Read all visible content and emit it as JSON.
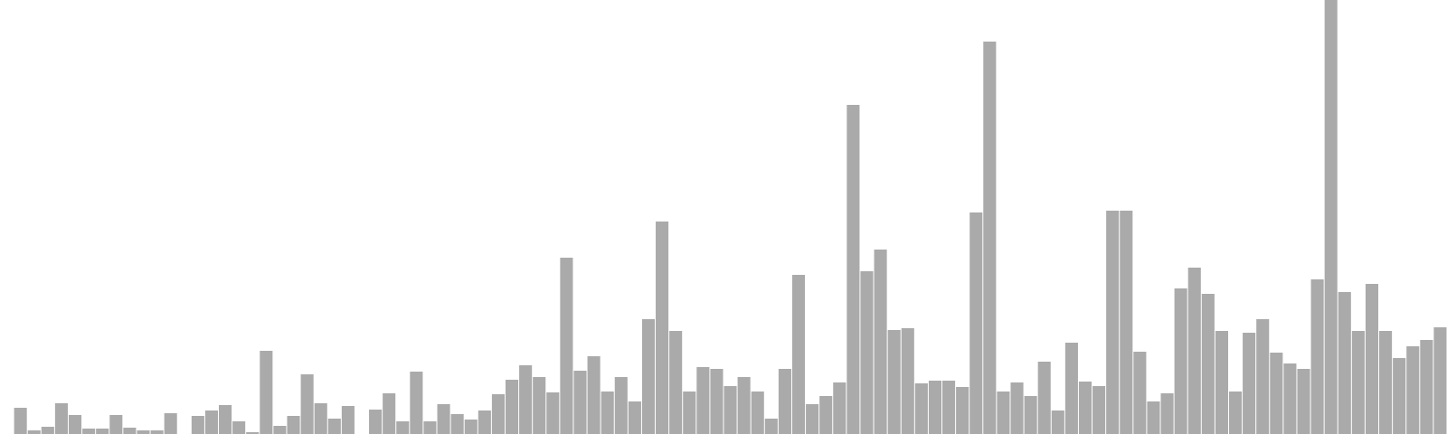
{
  "chart_data": {
    "type": "bar",
    "title": "",
    "xlabel": "",
    "ylabel": "",
    "bar_color": "#aaaaaa",
    "grid": false,
    "legend": "none",
    "ylim": [
      0,
      480
    ],
    "values": [
      0,
      29,
      4,
      8,
      34,
      21,
      6,
      6,
      21,
      7,
      4,
      4,
      23,
      0,
      20,
      26,
      32,
      14,
      2,
      92,
      9,
      20,
      66,
      34,
      17,
      31,
      0,
      27,
      45,
      14,
      69,
      14,
      33,
      22,
      16,
      26,
      44,
      60,
      76,
      63,
      46,
      195,
      70,
      86,
      47,
      63,
      36,
      127,
      235,
      114,
      47,
      74,
      72,
      53,
      63,
      47,
      17,
      72,
      176,
      33,
      42,
      57,
      364,
      180,
      204,
      115,
      117,
      56,
      59,
      59,
      52,
      245,
      434,
      47,
      57,
      42,
      80,
      26,
      101,
      58,
      53,
      247,
      247,
      91,
      36,
      45,
      161,
      184,
      155,
      114,
      47,
      112,
      127,
      90,
      78,
      72,
      171,
      480,
      157,
      114,
      166,
      114,
      84,
      97,
      104,
      118
    ]
  }
}
